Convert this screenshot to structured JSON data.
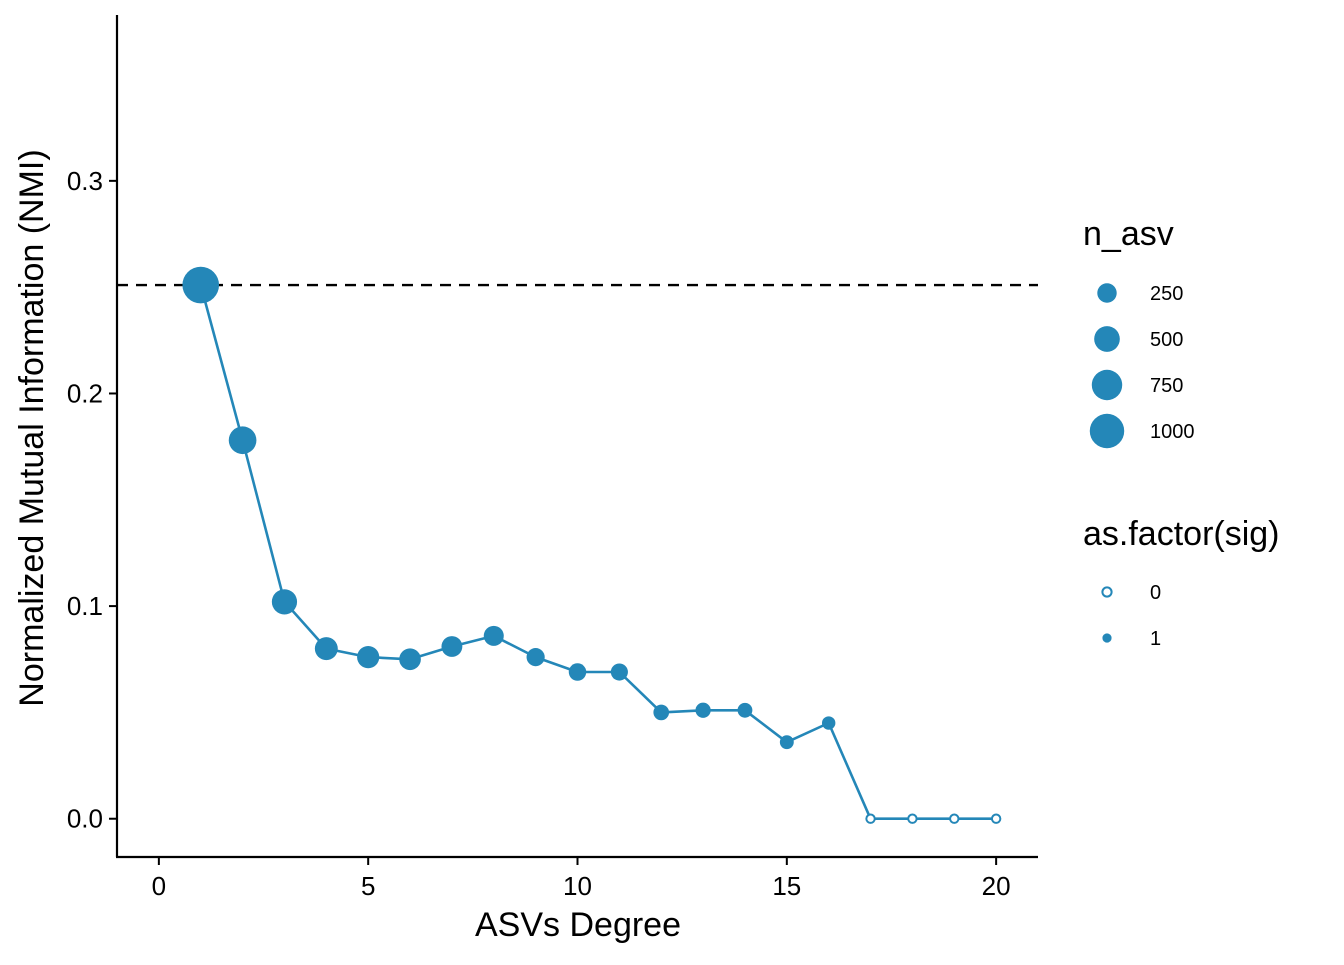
{
  "colors": {
    "series": "#2487B8",
    "axis": "#000000",
    "reference_line": "#000000",
    "background": "#ffffff"
  },
  "chart_data": {
    "type": "scatter",
    "title": "",
    "xlabel": "ASVs Degree",
    "ylabel": "Normalized Mutual Information (NMI)",
    "xlim": [
      -1,
      21
    ],
    "ylim": [
      -0.018,
      0.378
    ],
    "x_ticks": [
      0,
      5,
      10,
      15,
      20
    ],
    "x_tick_labels": [
      "0",
      "5",
      "10",
      "15",
      "20"
    ],
    "y_ticks": [
      0.0,
      0.1,
      0.2,
      0.3
    ],
    "y_tick_labels": [
      "0.0",
      "0.1",
      "0.2",
      "0.3"
    ],
    "grid": false,
    "reference_line": {
      "orientation": "horizontal",
      "y": 0.251,
      "style": "dashed"
    },
    "connect_points": true,
    "series": [
      {
        "x": [
          1,
          2,
          3,
          4,
          5,
          6,
          7,
          8,
          9,
          10,
          11,
          12,
          13,
          14,
          15,
          16,
          17,
          18,
          19,
          20
        ],
        "y": [
          0.251,
          0.178,
          0.102,
          0.08,
          0.076,
          0.075,
          0.081,
          0.086,
          0.076,
          0.069,
          0.069,
          0.05,
          0.051,
          0.051,
          0.036,
          0.045,
          0.0,
          0.0,
          0.0,
          0.0
        ],
        "n_asv": [
          1150,
          600,
          480,
          380,
          350,
          330,
          300,
          270,
          210,
          190,
          180,
          140,
          130,
          120,
          100,
          90,
          70,
          60,
          50,
          40
        ],
        "sig": [
          1,
          1,
          1,
          1,
          1,
          1,
          1,
          1,
          1,
          1,
          1,
          1,
          1,
          1,
          1,
          1,
          0,
          0,
          0,
          0
        ]
      }
    ],
    "legend": {
      "placement": "right",
      "size": {
        "title": "n_asv",
        "labels": [
          "250",
          "500",
          "750",
          "1000"
        ],
        "values": [
          250,
          500,
          750,
          1000
        ]
      },
      "fill": {
        "title": "as.factor(sig)",
        "labels": [
          "0",
          "1"
        ],
        "values": [
          0,
          1
        ]
      }
    }
  }
}
